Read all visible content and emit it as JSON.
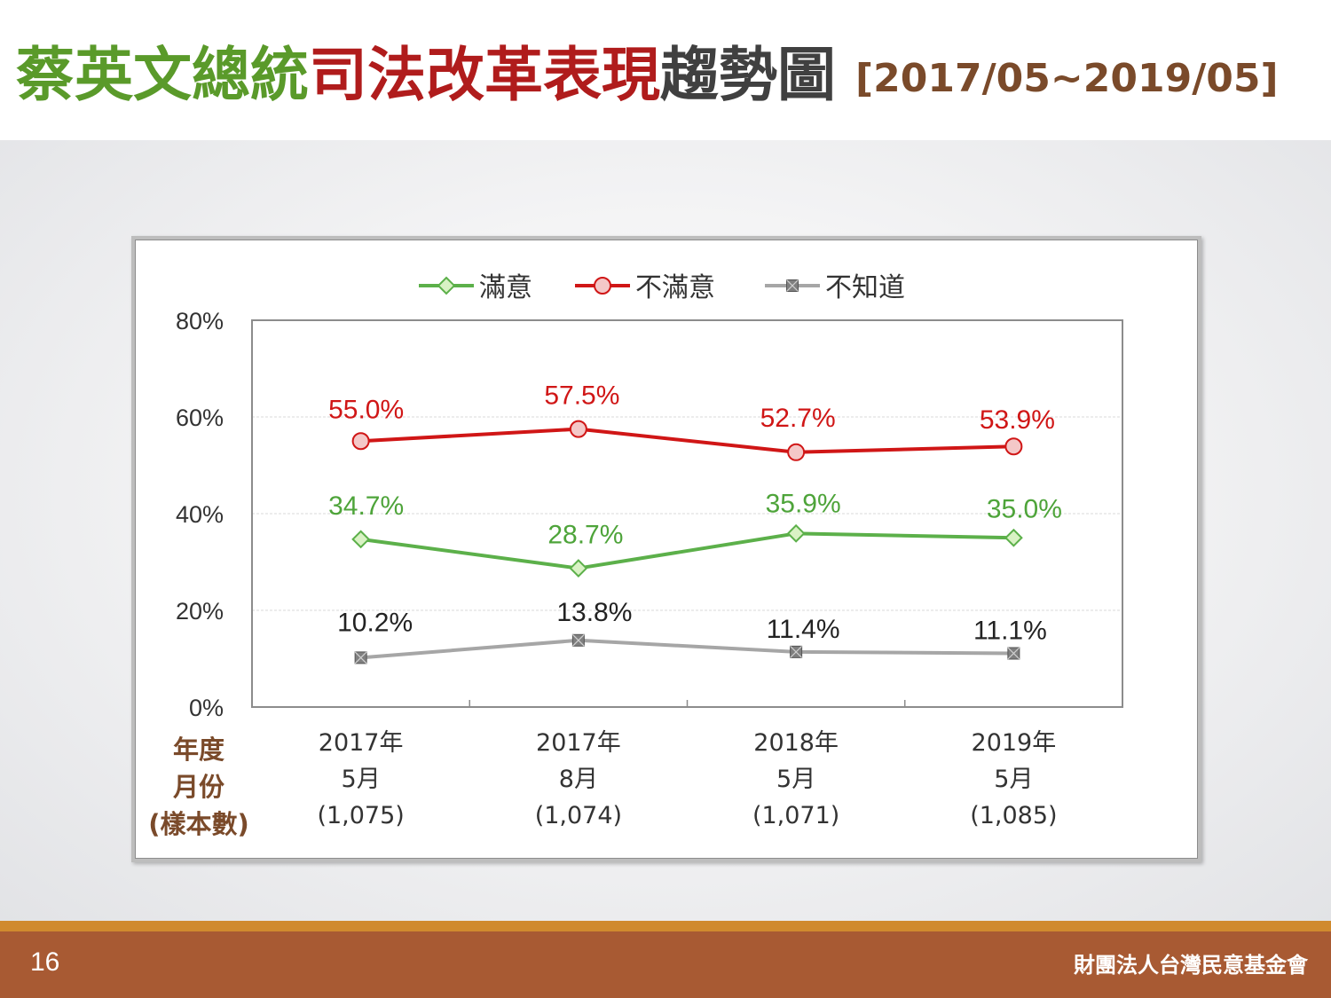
{
  "title": {
    "part1": "蔡英文總統",
    "part2": "司法改革表現",
    "part3": "趨勢圖",
    "range": "[2017/05~2019/05]"
  },
  "footer": {
    "page_number": "16",
    "organization": "財團法人台灣民意基金會"
  },
  "colors": {
    "satisfied": "#5cb04a",
    "dissatisfied": "#d01616",
    "unknown": "#a6a6a6",
    "title_green": "#5a9a2a",
    "title_red": "#b01c1c",
    "footer": "#a85a33"
  },
  "chart_data": {
    "type": "line",
    "categories": [
      [
        "2017年",
        "5月",
        "(1,075)"
      ],
      [
        "2017年",
        "8月",
        "(1,074)"
      ],
      [
        "2018年",
        "5月",
        "(1,071)"
      ],
      [
        "2019年",
        "5月",
        "(1,085)"
      ]
    ],
    "x_axis_title": [
      "年度",
      "月份",
      "(樣本數)"
    ],
    "ylim": [
      0,
      80
    ],
    "yticks": [
      0,
      20,
      40,
      60,
      80
    ],
    "ytick_suffix": "%",
    "grid": true,
    "legend_position": "top",
    "series": [
      {
        "name": "滿意",
        "values": [
          34.7,
          28.7,
          35.9,
          35.0
        ],
        "labels": [
          "34.7%",
          "28.7%",
          "35.9%",
          "35.0%"
        ],
        "marker": "diamond",
        "color": "#5cb04a",
        "fill": "#d9f2c4",
        "label_color": "#4ea43a"
      },
      {
        "name": "不滿意",
        "values": [
          55.0,
          57.5,
          52.7,
          53.9
        ],
        "labels": [
          "55.0%",
          "57.5%",
          "52.7%",
          "53.9%"
        ],
        "marker": "circle",
        "color": "#d01616",
        "fill": "#f4c8c8",
        "label_color": "#d01616"
      },
      {
        "name": "不知道",
        "values": [
          10.2,
          13.8,
          11.4,
          11.1
        ],
        "labels": [
          "10.2%",
          "13.8%",
          "11.4%",
          "11.1%"
        ],
        "marker": "square-x",
        "color": "#a6a6a6",
        "fill": "#7f7f7f",
        "label_color": "#222222"
      }
    ]
  }
}
